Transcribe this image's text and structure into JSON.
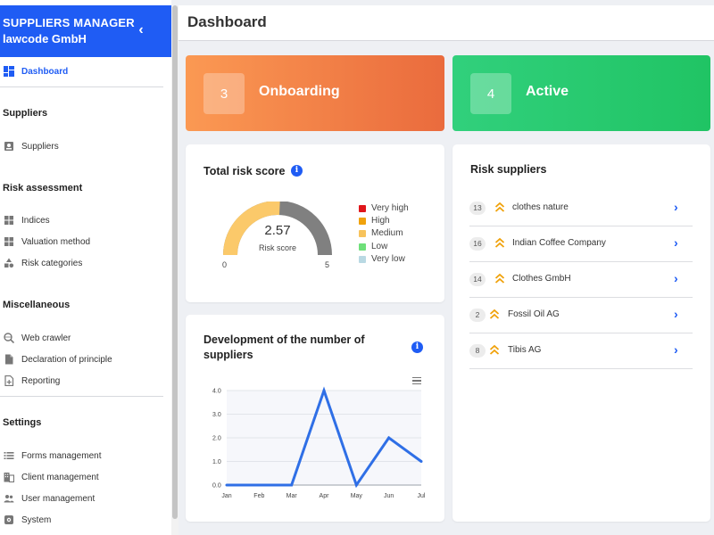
{
  "brand": {
    "line1": "SUPPLIERS MANAGER",
    "line2": "lawcode GmbH"
  },
  "nav": {
    "dashboard": "Dashboard",
    "sections": {
      "suppliers": "Suppliers",
      "risk": "Risk assessment",
      "misc": "Miscellaneous",
      "settings": "Settings"
    },
    "items": {
      "suppliers": "Suppliers",
      "indices": "Indices",
      "valuation": "Valuation method",
      "risk_categories": "Risk categories",
      "web_crawler": "Web crawler",
      "declaration": "Declaration of principle",
      "reporting": "Reporting",
      "forms": "Forms management",
      "client": "Client management",
      "user": "User management",
      "system": "System"
    }
  },
  "header": {
    "title": "Dashboard"
  },
  "kpis": {
    "onboarding": {
      "value": "3",
      "label": "Onboarding"
    },
    "active": {
      "value": "4",
      "label": "Active"
    }
  },
  "risk_score": {
    "title": "Total risk score",
    "value": "2.57",
    "label": "Risk score",
    "min": "0",
    "max": "5",
    "fraction": 0.514,
    "legend": [
      {
        "label": "Very high",
        "color": "#e0161b"
      },
      {
        "label": "High",
        "color": "#f0a20c"
      },
      {
        "label": "Medium",
        "color": "#f7c35c"
      },
      {
        "label": "Low",
        "color": "#6fe07a"
      },
      {
        "label": "Very low",
        "color": "#b9d9e3"
      }
    ],
    "fill_color": "#fbc96a",
    "track_color": "#808080"
  },
  "development": {
    "title_line1": "Development of the number of",
    "title_line2": "suppliers"
  },
  "chart_data": {
    "type": "line",
    "title": "Development of the number of suppliers",
    "categories": [
      "Jan",
      "Feb",
      "Mar",
      "Apr",
      "May",
      "Jun",
      "Jul"
    ],
    "values": [
      0,
      0,
      0,
      4,
      0,
      2,
      1
    ],
    "y_ticks": [
      "0.0",
      "1.0",
      "2.0",
      "3.0",
      "4.0"
    ],
    "ylim": [
      0,
      4
    ],
    "grid": true,
    "color": "#2f6fe6"
  },
  "risk_suppliers": {
    "title": "Risk suppliers",
    "rows": [
      {
        "count": "13",
        "name": "clothes nature"
      },
      {
        "count": "16",
        "name": "Indian Coffee Company"
      },
      {
        "count": "14",
        "name": "Clothes GmbH"
      },
      {
        "count": "2",
        "name": "Fossil Oil AG"
      },
      {
        "count": "8",
        "name": "Tibis AG"
      }
    ]
  }
}
